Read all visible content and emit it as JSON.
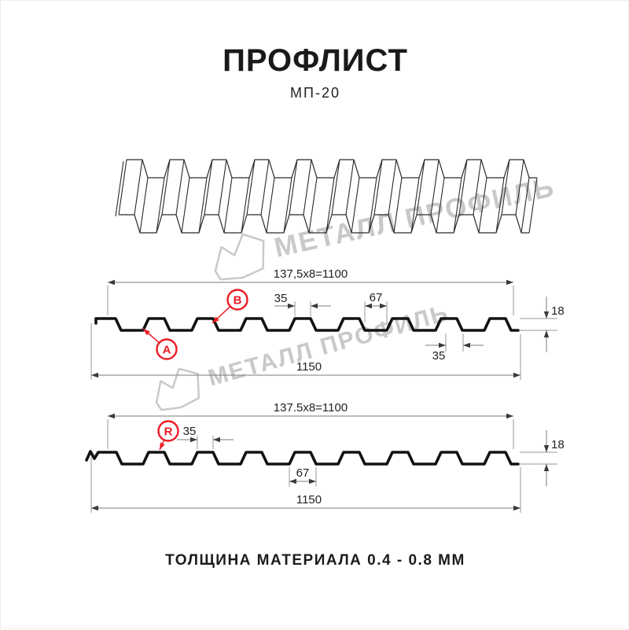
{
  "header": {
    "title": "ПРОФЛИСТ",
    "subtitle": "МП-20"
  },
  "watermark": {
    "text": "МЕТАЛЛ ПРОФИЛЬ"
  },
  "colors": {
    "accent_red": "#ec1c24",
    "line": "#1a1a1a",
    "dim_line": "#7a7a7a",
    "watermark_gray": "#c9c9c9",
    "background": "#ffffff"
  },
  "section_top": {
    "labels": {
      "a": "A",
      "b": "B"
    },
    "dims": {
      "coverage": "137,5x8=1100",
      "rib_top_width": "35",
      "valley_width": "67",
      "profile_height": "18",
      "rib_bottom_width": "35",
      "overall_width": "1150"
    }
  },
  "section_bottom": {
    "labels": {
      "r": "R"
    },
    "dims": {
      "coverage": "137.5x8=1100",
      "rib_top_width": "35",
      "valley_width": "67",
      "profile_height": "18",
      "overall_width": "1150"
    }
  },
  "footer": {
    "text": "ТОЛЩИНА МАТЕРИАЛА 0.4 - 0.8 ММ"
  }
}
